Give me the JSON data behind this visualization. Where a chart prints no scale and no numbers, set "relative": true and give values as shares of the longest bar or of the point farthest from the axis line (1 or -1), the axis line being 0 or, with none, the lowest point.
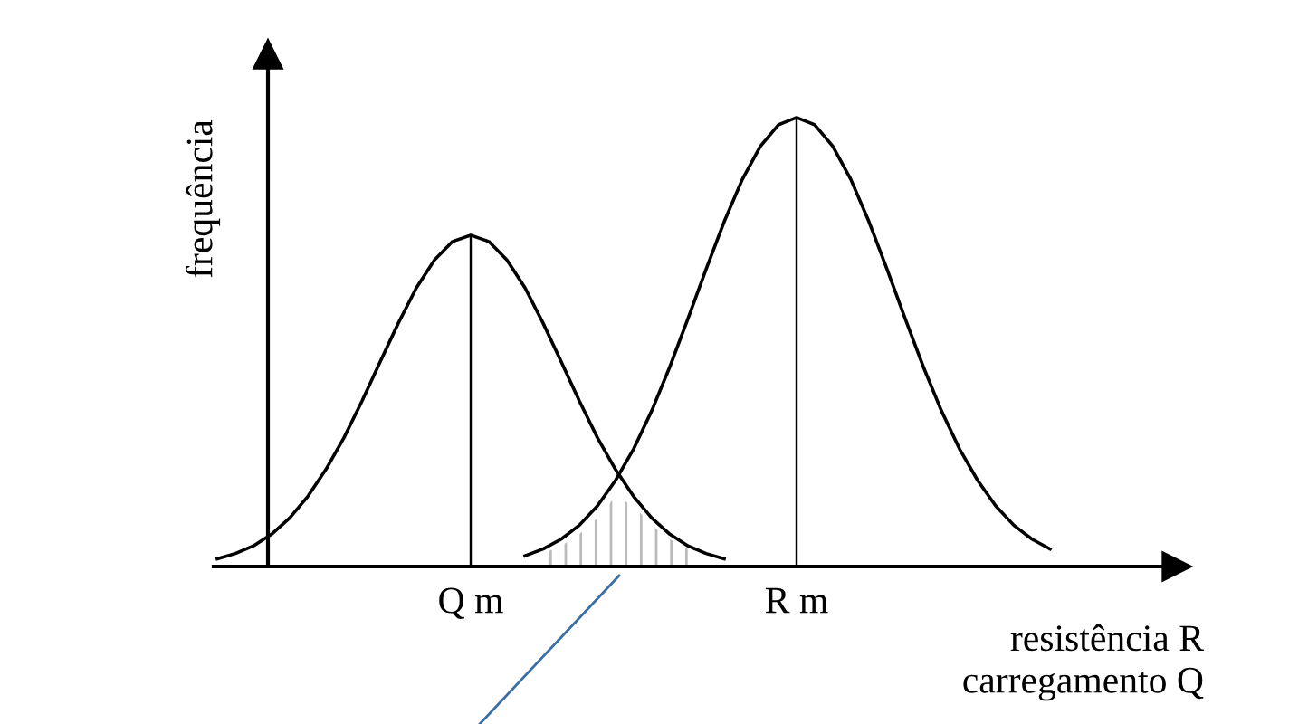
{
  "chart_data": {
    "type": "line",
    "relative": true,
    "ylabel": "frequência",
    "xlabel": "resistência R\ncarregamento Q",
    "legend": false,
    "grid": false,
    "marker": "none",
    "line_style": "solid",
    "categories": [
      null,
      null,
      null,
      null,
      null,
      null,
      null,
      null,
      null,
      null,
      null,
      null,
      null,
      null,
      "Q m",
      null,
      null,
      null,
      null,
      null,
      null,
      null,
      null,
      null,
      null,
      null,
      null,
      null,
      null,
      null,
      null,
      null,
      "R m",
      null,
      null,
      null,
      null,
      null,
      null,
      null,
      null,
      null,
      null,
      null,
      null,
      null,
      null,
      null
    ],
    "series": [
      {
        "type": "area",
        "color": "#bbbbbb",
        "values": [
          null,
          null,
          null,
          null,
          null,
          null,
          null,
          null,
          null,
          null,
          null,
          null,
          null,
          null,
          null,
          null,
          null,
          null,
          0.029,
          0.046,
          0.072,
          0.108,
          0.156,
          0.135,
          0.092,
          0.061,
          0.039,
          null,
          null,
          null,
          null,
          null,
          null,
          null,
          null,
          null,
          null,
          null,
          null,
          null,
          null,
          null,
          null,
          null,
          null,
          null,
          null,
          null
        ]
      },
      {
        "color": "#000000",
        "values": [
          0.017,
          0.029,
          0.046,
          0.072,
          0.108,
          0.156,
          0.216,
          0.287,
          0.369,
          0.456,
          0.542,
          0.621,
          0.683,
          0.724,
          0.738,
          0.724,
          0.683,
          0.621,
          0.542,
          0.456,
          0.369,
          0.287,
          0.216,
          0.156,
          0.108,
          0.072,
          0.046,
          0.029,
          0.017,
          null,
          null,
          null,
          null,
          null,
          null,
          null,
          null,
          null,
          null,
          null,
          null,
          null,
          null,
          null,
          null,
          null,
          null,
          null
        ]
      },
      {
        "color": "#000000",
        "values": [
          null,
          null,
          null,
          null,
          null,
          null,
          null,
          null,
          null,
          null,
          null,
          null,
          null,
          null,
          null,
          null,
          null,
          0.024,
          0.039,
          0.061,
          0.092,
          0.135,
          0.192,
          0.262,
          0.347,
          0.445,
          0.552,
          0.662,
          0.768,
          0.862,
          0.936,
          0.984,
          1.0,
          0.984,
          0.936,
          0.862,
          0.768,
          0.662,
          0.552,
          0.445,
          0.347,
          0.262,
          0.192,
          0.135,
          0.092,
          0.061,
          0.039,
          null
        ]
      },
      {
        "type": "bar",
        "color": "#000000",
        "values": [
          null,
          null,
          null,
          null,
          null,
          null,
          null,
          null,
          null,
          null,
          null,
          null,
          null,
          null,
          0.738,
          null,
          null,
          null,
          null,
          null,
          null,
          null,
          null,
          null,
          null,
          null,
          null,
          null,
          null,
          null,
          null,
          null,
          1.0,
          null,
          null,
          null,
          null,
          null,
          null,
          null,
          null,
          null,
          null,
          null,
          null,
          null,
          null,
          null
        ]
      }
    ]
  }
}
